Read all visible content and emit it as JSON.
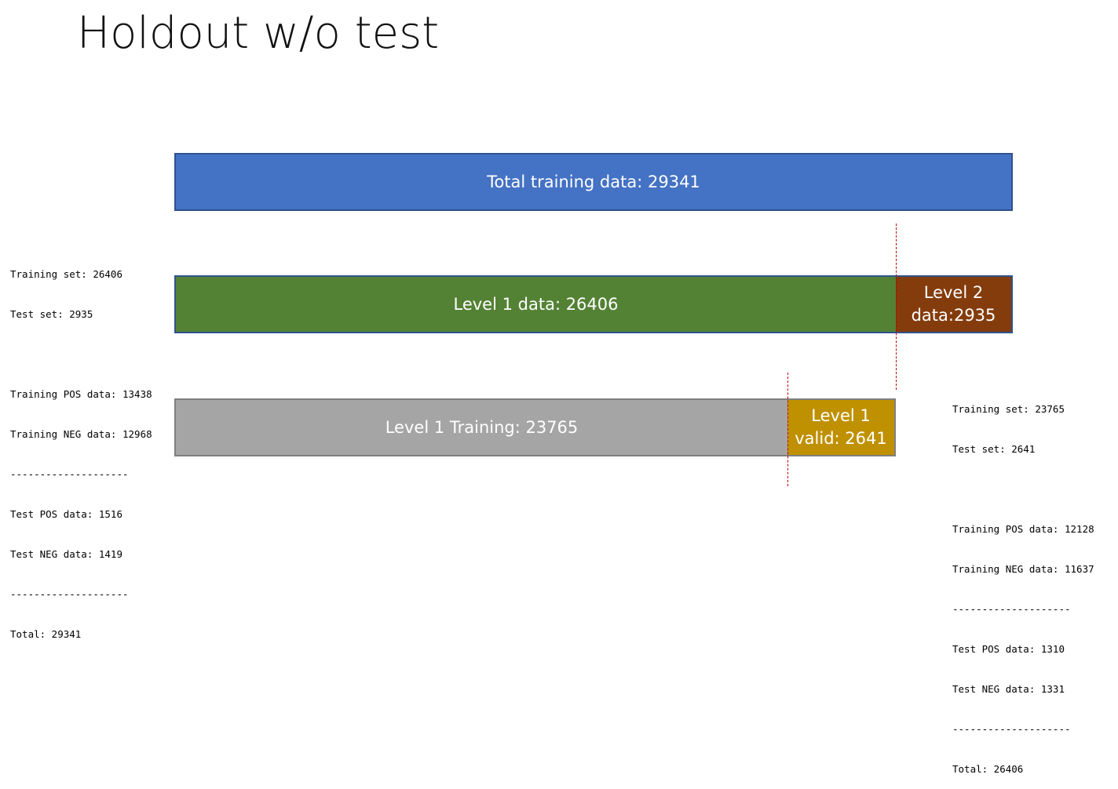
{
  "title": "Holdout w/o test",
  "bars": {
    "total": {
      "label": "Total training data: 29341"
    },
    "level1": {
      "label": "Level 1 data: 26406"
    },
    "level2": {
      "line1": "Level 2",
      "line2": "data:2935"
    },
    "level1_training": {
      "label": "Level 1 Training: 23765"
    },
    "level1_valid": {
      "line1": "Level 1",
      "line2": "valid: 2641"
    }
  },
  "stats_left": {
    "training_set": "Training set: 26406",
    "test_set": "Test set: 2935",
    "training_pos": "Training POS data: 13438",
    "training_neg": "Training NEG data: 12968",
    "separator1": "--------------------",
    "test_pos": "Test POS data: 1516",
    "test_neg": "Test NEG data: 1419",
    "separator2": "--------------------",
    "total": "Total: 29341"
  },
  "stats_right": {
    "training_set": "Training set: 23765",
    "test_set": "Test set: 2641",
    "training_pos": "Training POS data: 12128",
    "training_neg": "Training NEG data: 11637",
    "separator1": "--------------------",
    "test_pos": "Test POS data: 1310",
    "test_neg": "Test NEG data: 1331",
    "separator2": "--------------------",
    "total": "Total: 26406"
  },
  "colors": {
    "total_bar": "#4472c4",
    "level1_bar": "#548235",
    "level2_bar": "#843c0c",
    "level1_training_bar": "#a5a5a5",
    "level1_valid_bar": "#bf9000",
    "split_line": "#c00000"
  }
}
